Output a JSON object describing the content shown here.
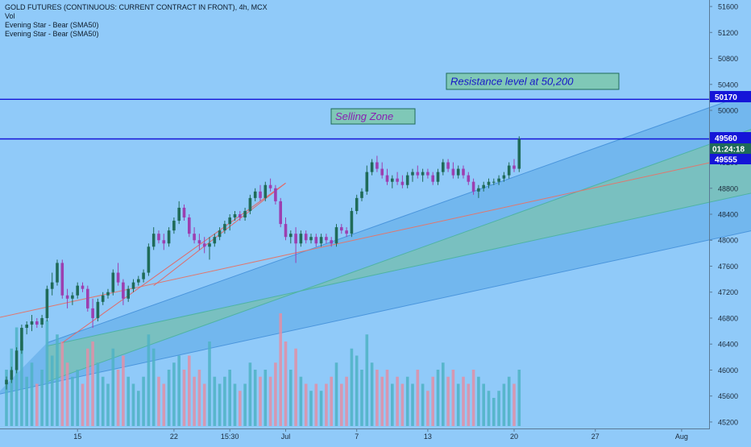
{
  "legend": {
    "title": "GOLD FUTURES (CONTINUOUS: CURRENT CONTRACT IN FRONT), 4h, MCX",
    "line1": "Vol",
    "line2": "Evening Star - Bear (SMA50)",
    "line3": "Evening Star - Bear (SMA50)"
  },
  "annotations": {
    "resistance_label": "Resistance level at 50,200",
    "selling_zone_label": "Selling Zone"
  },
  "price_badges": {
    "resistance": "50170",
    "last_price": "49560",
    "countdown": "01:24:18",
    "prev_close": "49555"
  },
  "colors": {
    "background": "#90caf9",
    "bull": "#1f6b58",
    "bear": "#9c3fb0",
    "vol_bull": "#4fb3c4",
    "vol_bear": "#e28fa6",
    "hline": "#1515d8",
    "channel_outer": "#4a95dc",
    "channel_inner": "#4fb3a4",
    "mid_line": "#e0776e",
    "trend_line": "#e06a6a",
    "badge_blue": "#1515d8",
    "badge_green": "#1f6b58",
    "text_purple": "#8a1fb3"
  },
  "chart_data": {
    "type": "candlestick",
    "timeframe": "4h",
    "ylim": [
      45100,
      51700
    ],
    "y_ticks": [
      45200,
      45600,
      46000,
      46400,
      46800,
      47200,
      47600,
      48000,
      48400,
      48800,
      49200,
      49600,
      50000,
      50400,
      50800,
      51200,
      51600
    ],
    "x_ticks": [
      {
        "label": "15",
        "bar": 14
      },
      {
        "label": "22",
        "bar": 33
      },
      {
        "label": "15:30",
        "bar": 44
      },
      {
        "label": "Jul",
        "bar": 55
      },
      {
        "label": "7",
        "bar": 69
      },
      {
        "label": "13",
        "bar": 83
      },
      {
        "label": "20",
        "bar": 100
      },
      {
        "label": "27",
        "bar": 116
      },
      {
        "label": "Aug",
        "bar": 133
      }
    ],
    "horizontal_lines": [
      50170,
      49560
    ],
    "candles": [
      {
        "o": 45780,
        "h": 45900,
        "l": 45700,
        "c": 45850,
        "v": 40
      },
      {
        "o": 45850,
        "h": 46050,
        "l": 45800,
        "c": 46000,
        "v": 55
      },
      {
        "o": 46000,
        "h": 46350,
        "l": 45950,
        "c": 46300,
        "v": 70
      },
      {
        "o": 46300,
        "h": 46700,
        "l": 46250,
        "c": 46650,
        "v": 60
      },
      {
        "o": 46650,
        "h": 46750,
        "l": 46550,
        "c": 46700,
        "v": 35
      },
      {
        "o": 46700,
        "h": 46850,
        "l": 46600,
        "c": 46750,
        "v": 45
      },
      {
        "o": 46750,
        "h": 46800,
        "l": 46650,
        "c": 46700,
        "v": 30
      },
      {
        "o": 46700,
        "h": 46850,
        "l": 46650,
        "c": 46800,
        "v": 40
      },
      {
        "o": 46800,
        "h": 47300,
        "l": 46750,
        "c": 47250,
        "v": 75
      },
      {
        "o": 47250,
        "h": 47500,
        "l": 47150,
        "c": 47350,
        "v": 50
      },
      {
        "o": 47350,
        "h": 47700,
        "l": 47300,
        "c": 47650,
        "v": 65
      },
      {
        "o": 47650,
        "h": 47700,
        "l": 47100,
        "c": 47150,
        "v": 60
      },
      {
        "o": 47150,
        "h": 47250,
        "l": 46950,
        "c": 47100,
        "v": 45
      },
      {
        "o": 47100,
        "h": 47200,
        "l": 47000,
        "c": 47150,
        "v": 35
      },
      {
        "o": 47150,
        "h": 47350,
        "l": 47100,
        "c": 47300,
        "v": 40
      },
      {
        "o": 47300,
        "h": 47350,
        "l": 47200,
        "c": 47250,
        "v": 30
      },
      {
        "o": 47250,
        "h": 47300,
        "l": 46900,
        "c": 46950,
        "v": 55
      },
      {
        "o": 46950,
        "h": 47100,
        "l": 46650,
        "c": 46800,
        "v": 60
      },
      {
        "o": 46800,
        "h": 47100,
        "l": 46750,
        "c": 47050,
        "v": 45
      },
      {
        "o": 47050,
        "h": 47200,
        "l": 47000,
        "c": 47150,
        "v": 35
      },
      {
        "o": 47150,
        "h": 47250,
        "l": 47100,
        "c": 47200,
        "v": 30
      },
      {
        "o": 47200,
        "h": 47550,
        "l": 47150,
        "c": 47500,
        "v": 55
      },
      {
        "o": 47500,
        "h": 47650,
        "l": 47300,
        "c": 47350,
        "v": 40
      },
      {
        "o": 47350,
        "h": 47400,
        "l": 47000,
        "c": 47100,
        "v": 50
      },
      {
        "o": 47100,
        "h": 47300,
        "l": 47050,
        "c": 47250,
        "v": 35
      },
      {
        "o": 47250,
        "h": 47400,
        "l": 47200,
        "c": 47350,
        "v": 30
      },
      {
        "o": 47350,
        "h": 47450,
        "l": 47300,
        "c": 47400,
        "v": 25
      },
      {
        "o": 47400,
        "h": 47550,
        "l": 47350,
        "c": 47500,
        "v": 35
      },
      {
        "o": 47500,
        "h": 47950,
        "l": 47450,
        "c": 47900,
        "v": 65
      },
      {
        "o": 47900,
        "h": 48200,
        "l": 47850,
        "c": 48100,
        "v": 55
      },
      {
        "o": 48100,
        "h": 48150,
        "l": 47950,
        "c": 48000,
        "v": 35
      },
      {
        "o": 48000,
        "h": 48100,
        "l": 47850,
        "c": 47950,
        "v": 30
      },
      {
        "o": 47950,
        "h": 48200,
        "l": 47900,
        "c": 48150,
        "v": 40
      },
      {
        "o": 48150,
        "h": 48350,
        "l": 48100,
        "c": 48300,
        "v": 45
      },
      {
        "o": 48300,
        "h": 48600,
        "l": 48250,
        "c": 48500,
        "v": 50
      },
      {
        "o": 48500,
        "h": 48550,
        "l": 48300,
        "c": 48350,
        "v": 40
      },
      {
        "o": 48350,
        "h": 48400,
        "l": 48050,
        "c": 48100,
        "v": 50
      },
      {
        "o": 48100,
        "h": 48200,
        "l": 47950,
        "c": 48000,
        "v": 35
      },
      {
        "o": 48000,
        "h": 48100,
        "l": 47850,
        "c": 47950,
        "v": 40
      },
      {
        "o": 47950,
        "h": 48050,
        "l": 47800,
        "c": 47900,
        "v": 30
      },
      {
        "o": 47900,
        "h": 48050,
        "l": 47700,
        "c": 47950,
        "v": 60
      },
      {
        "o": 47950,
        "h": 48100,
        "l": 47900,
        "c": 48050,
        "v": 35
      },
      {
        "o": 48050,
        "h": 48200,
        "l": 48000,
        "c": 48150,
        "v": 30
      },
      {
        "o": 48150,
        "h": 48300,
        "l": 48100,
        "c": 48250,
        "v": 35
      },
      {
        "o": 48250,
        "h": 48400,
        "l": 48150,
        "c": 48350,
        "v": 40
      },
      {
        "o": 48350,
        "h": 48450,
        "l": 48300,
        "c": 48400,
        "v": 30
      },
      {
        "o": 48400,
        "h": 48450,
        "l": 48300,
        "c": 48350,
        "v": 25
      },
      {
        "o": 48350,
        "h": 48500,
        "l": 48300,
        "c": 48450,
        "v": 30
      },
      {
        "o": 48450,
        "h": 48700,
        "l": 48400,
        "c": 48650,
        "v": 45
      },
      {
        "o": 48650,
        "h": 48800,
        "l": 48600,
        "c": 48750,
        "v": 40
      },
      {
        "o": 48750,
        "h": 48850,
        "l": 48600,
        "c": 48650,
        "v": 35
      },
      {
        "o": 48650,
        "h": 48900,
        "l": 48600,
        "c": 48850,
        "v": 40
      },
      {
        "o": 48850,
        "h": 48950,
        "l": 48750,
        "c": 48800,
        "v": 35
      },
      {
        "o": 48800,
        "h": 48850,
        "l": 48550,
        "c": 48600,
        "v": 45
      },
      {
        "o": 48600,
        "h": 48650,
        "l": 48200,
        "c": 48250,
        "v": 80
      },
      {
        "o": 48250,
        "h": 48350,
        "l": 48000,
        "c": 48050,
        "v": 60
      },
      {
        "o": 48050,
        "h": 48150,
        "l": 47950,
        "c": 48100,
        "v": 40
      },
      {
        "o": 48100,
        "h": 48200,
        "l": 47650,
        "c": 47950,
        "v": 55
      },
      {
        "o": 47950,
        "h": 48150,
        "l": 47900,
        "c": 48100,
        "v": 35
      },
      {
        "o": 48100,
        "h": 48150,
        "l": 47950,
        "c": 48000,
        "v": 30
      },
      {
        "o": 48000,
        "h": 48100,
        "l": 47950,
        "c": 48050,
        "v": 25
      },
      {
        "o": 48050,
        "h": 48100,
        "l": 47900,
        "c": 47950,
        "v": 30
      },
      {
        "o": 47950,
        "h": 48100,
        "l": 47900,
        "c": 48050,
        "v": 25
      },
      {
        "o": 48050,
        "h": 48100,
        "l": 47950,
        "c": 48000,
        "v": 30
      },
      {
        "o": 48000,
        "h": 48050,
        "l": 47900,
        "c": 47950,
        "v": 35
      },
      {
        "o": 47950,
        "h": 48250,
        "l": 47900,
        "c": 48200,
        "v": 45
      },
      {
        "o": 48200,
        "h": 48250,
        "l": 48100,
        "c": 48150,
        "v": 30
      },
      {
        "o": 48150,
        "h": 48200,
        "l": 48050,
        "c": 48100,
        "v": 35
      },
      {
        "o": 48100,
        "h": 48500,
        "l": 48050,
        "c": 48450,
        "v": 55
      },
      {
        "o": 48450,
        "h": 48700,
        "l": 48400,
        "c": 48650,
        "v": 50
      },
      {
        "o": 48650,
        "h": 48800,
        "l": 48600,
        "c": 48750,
        "v": 40
      },
      {
        "o": 48750,
        "h": 49150,
        "l": 48700,
        "c": 49050,
        "v": 65
      },
      {
        "o": 49050,
        "h": 49250,
        "l": 49000,
        "c": 49200,
        "v": 45
      },
      {
        "o": 49200,
        "h": 49300,
        "l": 49050,
        "c": 49100,
        "v": 40
      },
      {
        "o": 49100,
        "h": 49200,
        "l": 48950,
        "c": 49000,
        "v": 35
      },
      {
        "o": 49000,
        "h": 49100,
        "l": 48850,
        "c": 48900,
        "v": 40
      },
      {
        "o": 48900,
        "h": 49000,
        "l": 48800,
        "c": 48950,
        "v": 30
      },
      {
        "o": 48950,
        "h": 49050,
        "l": 48850,
        "c": 48900,
        "v": 35
      },
      {
        "o": 48900,
        "h": 49000,
        "l": 48800,
        "c": 48850,
        "v": 30
      },
      {
        "o": 48850,
        "h": 49050,
        "l": 48800,
        "c": 49000,
        "v": 35
      },
      {
        "o": 49000,
        "h": 49100,
        "l": 48900,
        "c": 49050,
        "v": 30
      },
      {
        "o": 49050,
        "h": 49150,
        "l": 48950,
        "c": 49000,
        "v": 40
      },
      {
        "o": 49000,
        "h": 49100,
        "l": 48900,
        "c": 49050,
        "v": 30
      },
      {
        "o": 49050,
        "h": 49100,
        "l": 48950,
        "c": 49000,
        "v": 25
      },
      {
        "o": 49000,
        "h": 49050,
        "l": 48850,
        "c": 48900,
        "v": 35
      },
      {
        "o": 48900,
        "h": 49100,
        "l": 48850,
        "c": 49050,
        "v": 40
      },
      {
        "o": 49050,
        "h": 49250,
        "l": 49000,
        "c": 49200,
        "v": 45
      },
      {
        "o": 49200,
        "h": 49250,
        "l": 49050,
        "c": 49100,
        "v": 35
      },
      {
        "o": 49100,
        "h": 49200,
        "l": 48950,
        "c": 49000,
        "v": 40
      },
      {
        "o": 49000,
        "h": 49150,
        "l": 48950,
        "c": 49100,
        "v": 30
      },
      {
        "o": 49100,
        "h": 49150,
        "l": 48950,
        "c": 49000,
        "v": 35
      },
      {
        "o": 49000,
        "h": 49050,
        "l": 48850,
        "c": 48900,
        "v": 30
      },
      {
        "o": 48900,
        "h": 48950,
        "l": 48700,
        "c": 48750,
        "v": 40
      },
      {
        "o": 48750,
        "h": 48850,
        "l": 48650,
        "c": 48800,
        "v": 35
      },
      {
        "o": 48800,
        "h": 48900,
        "l": 48750,
        "c": 48850,
        "v": 30
      },
      {
        "o": 48850,
        "h": 48950,
        "l": 48800,
        "c": 48900,
        "v": 25
      },
      {
        "o": 48900,
        "h": 48950,
        "l": 48850,
        "c": 48900,
        "v": 20
      },
      {
        "o": 48900,
        "h": 49000,
        "l": 48850,
        "c": 48950,
        "v": 25
      },
      {
        "o": 48950,
        "h": 49050,
        "l": 48900,
        "c": 49000,
        "v": 30
      },
      {
        "o": 49000,
        "h": 49200,
        "l": 48950,
        "c": 49150,
        "v": 35
      },
      {
        "o": 49150,
        "h": 49250,
        "l": 49050,
        "c": 49100,
        "v": 30
      },
      {
        "o": 49100,
        "h": 49600,
        "l": 49050,
        "c": 49560,
        "v": 40
      }
    ],
    "channel_lines": [
      {
        "name": "channel-upper-outer",
        "x0": 8,
        "y0": 46420,
        "x1": 160,
        "y1": 50640
      },
      {
        "name": "channel-upper-inner",
        "x0": 8,
        "y0": 45820,
        "x1": 160,
        "y1": 50080
      },
      {
        "name": "channel-mid",
        "x0": -2,
        "y0": 46800,
        "x1": 160,
        "y1": 49560
      },
      {
        "name": "channel-lower-inner",
        "x0": 8,
        "y0": 46370,
        "x1": 160,
        "y1": 48950
      },
      {
        "name": "channel-lower-outer",
        "x0": -2,
        "y0": 45620,
        "x1": 160,
        "y1": 48370
      }
    ],
    "trend_lines": [
      {
        "name": "trend-line-a",
        "x0": 11,
        "y0": 46420,
        "x1": 55,
        "y1": 48880
      },
      {
        "name": "trend-line-b",
        "x0": 29,
        "y0": 47300,
        "x1": 55,
        "y1": 48880
      }
    ]
  }
}
